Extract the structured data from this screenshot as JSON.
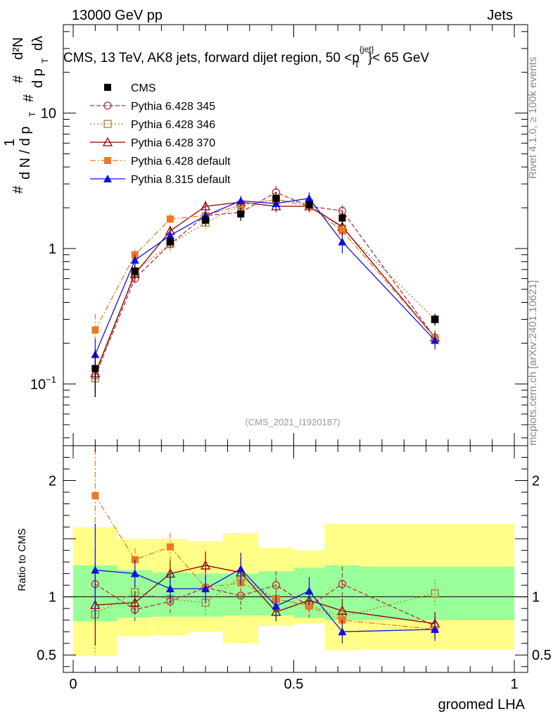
{
  "header": {
    "left": "13000 GeV pp",
    "right": "Jets"
  },
  "side_labels": {
    "rivet": "Rivet 4.1.0, ≥ 100k events",
    "mcplots": "mcplots.cern.ch [arXiv:2401.10621]"
  },
  "chart_data": {
    "type": "line",
    "title": "CMS, 13 TeV, AK8 jets, forward dijet region, 50 <p{jet}T< 65 GeV",
    "title_parts": {
      "main": "CMS, 13 TeV, AK8 jets, forward dijet region, 50 <p",
      "sup": "{jet}",
      "sub": "T",
      "tail": "}< 65 GeV"
    },
    "xlabel": "groomed LHA",
    "ylabel_parts": {
      "hash": "#",
      "one": "1",
      "dn": "d N / d p",
      "t": "T",
      "d2n": "d²N",
      "dpt": "d p",
      "dlambda": "dλ"
    },
    "ratio_ylabel": "Ratio to CMS",
    "watermark": "(CMS_2021_I1920187)",
    "xlim": [
      0,
      1
    ],
    "ylim": [
      0.035,
      45
    ],
    "yscale": "log",
    "ratio_ylim": [
      0.35,
      2.3
    ],
    "x_ticks": [
      {
        "value": 0,
        "label": "0"
      },
      {
        "value": 0.5,
        "label": "0.5"
      },
      {
        "value": 1,
        "label": "1"
      }
    ],
    "y_ticks": [
      {
        "value": 0.1,
        "base": "10",
        "exp": "−1"
      },
      {
        "value": 1,
        "base": "1",
        "exp": ""
      },
      {
        "value": 10,
        "base": "10",
        "exp": ""
      }
    ],
    "ratio_ticks": [
      {
        "value": 0.5,
        "label": "0.5"
      },
      {
        "value": 1,
        "label": "1"
      },
      {
        "value": 2,
        "label": "2"
      }
    ],
    "x_bins": [
      0,
      0.1,
      0.18,
      0.26,
      0.34,
      0.42,
      0.5,
      0.57,
      0.65,
      1.0
    ],
    "x_centers": [
      0.05,
      0.14,
      0.22,
      0.3,
      0.38,
      0.46,
      0.535,
      0.61,
      0.82
    ],
    "band_green": [
      [
        0.79,
        1.27
      ],
      [
        0.82,
        1.23
      ],
      [
        0.83,
        1.21
      ],
      [
        0.83,
        1.2
      ],
      [
        0.84,
        1.2
      ],
      [
        0.84,
        1.22
      ],
      [
        0.82,
        1.25
      ],
      [
        0.8,
        1.27
      ],
      [
        0.8,
        1.26
      ]
    ],
    "band_yellow": [
      [
        0.49,
        1.6
      ],
      [
        0.66,
        1.5
      ],
      [
        0.67,
        1.5
      ],
      [
        0.7,
        1.48
      ],
      [
        0.6,
        1.55
      ],
      [
        0.75,
        1.42
      ],
      [
        0.77,
        1.4
      ],
      [
        0.54,
        1.63
      ],
      [
        0.55,
        1.63
      ]
    ],
    "series": [
      {
        "name": "CMS",
        "color": "#000000",
        "marker": "square-filled",
        "dash": "none",
        "values": [
          0.13,
          0.68,
          1.12,
          1.62,
          1.8,
          2.35,
          2.1,
          1.68,
          0.3
        ],
        "errors": [
          0.05,
          0.08,
          0.1,
          0.15,
          0.2,
          0.25,
          0.2,
          0.2,
          0.03
        ],
        "ratio": [
          1.0,
          1.0,
          1.0,
          1.0,
          1.0,
          1.0,
          1.0,
          1.0,
          1.0
        ],
        "ratio_errors": [
          0,
          0,
          0,
          0,
          0,
          0,
          0,
          0,
          0
        ]
      },
      {
        "name": "Pythia 6.428 345",
        "color": "#b03040",
        "marker": "circle-open",
        "dash": "6,3",
        "values": [
          0.115,
          0.6,
          1.08,
          1.75,
          1.85,
          2.6,
          2.05,
          1.9,
          0.22
        ],
        "errors": [
          0.03,
          0.06,
          0.12,
          0.15,
          0.2,
          0.3,
          0.2,
          0.2,
          0.03
        ],
        "ratio": [
          1.11,
          0.89,
          0.96,
          1.08,
          1.01,
          1.1,
          0.92,
          1.11,
          0.75
        ],
        "ratio_errors": [
          0.3,
          0.1,
          0.1,
          0.1,
          0.12,
          0.12,
          0.1,
          0.15,
          0.1
        ]
      },
      {
        "name": "Pythia 6.428 346",
        "color": "#a08030",
        "marker": "square-open",
        "dash": "2,3",
        "values": [
          0.11,
          0.68,
          1.08,
          1.55,
          2.1,
          2.3,
          2.15,
          1.4,
          0.3
        ],
        "errors": [
          0.03,
          0.06,
          0.12,
          0.15,
          0.2,
          0.3,
          0.2,
          0.2,
          0.03
        ],
        "ratio": [
          0.85,
          1.04,
          0.98,
          0.95,
          1.17,
          0.98,
          0.93,
          0.83,
          1.03
        ],
        "ratio_errors": [
          0.35,
          0.1,
          0.1,
          0.12,
          0.12,
          0.12,
          0.1,
          0.12,
          0.12
        ]
      },
      {
        "name": "Pythia 6.428 370",
        "color": "#8b0000",
        "marker": "triangle-open",
        "dash": "none",
        "values": [
          0.12,
          0.65,
          1.35,
          2.05,
          2.2,
          2.05,
          2.05,
          1.45,
          0.22
        ],
        "errors": [
          0.04,
          0.06,
          0.12,
          0.2,
          0.2,
          0.2,
          0.2,
          0.2,
          0.03
        ],
        "ratio": [
          0.93,
          0.95,
          1.2,
          1.27,
          1.21,
          0.87,
          0.97,
          0.88,
          0.77
        ],
        "ratio_errors": [
          0.35,
          0.1,
          0.12,
          0.12,
          0.12,
          0.08,
          0.1,
          0.1,
          0.1
        ]
      },
      {
        "name": "Pythia 6.428 default",
        "color": "#f07820",
        "marker": "square-filled",
        "dash": "8,3,2,3",
        "values": [
          0.25,
          0.9,
          1.65,
          1.75,
          2.1,
          2.3,
          2.05,
          1.35,
          0.22
        ],
        "errors": [
          0.08,
          0.08,
          0.15,
          0.15,
          0.2,
          0.25,
          0.2,
          0.2,
          0.03
        ],
        "ratio": [
          1.87,
          1.32,
          1.43,
          1.08,
          1.12,
          0.98,
          0.92,
          0.8,
          0.72
        ],
        "ratio_errors": [
          0.4,
          0.1,
          0.12,
          0.12,
          0.12,
          0.12,
          0.1,
          0.1,
          0.08
        ]
      },
      {
        "name": "Pythia 8.315 default",
        "color": "#1010e0",
        "marker": "triangle-filled",
        "dash": "none",
        "values": [
          0.165,
          0.82,
          1.25,
          1.75,
          2.25,
          2.15,
          2.35,
          1.12,
          0.21
        ],
        "errors": [
          0.05,
          0.08,
          0.12,
          0.18,
          0.2,
          0.2,
          0.25,
          0.2,
          0.03
        ],
        "ratio": [
          1.23,
          1.2,
          1.07,
          1.07,
          1.24,
          0.92,
          1.05,
          0.7,
          0.72
        ],
        "ratio_errors": [
          0.4,
          0.12,
          0.12,
          0.12,
          0.14,
          0.1,
          0.12,
          0.1,
          0.1
        ]
      }
    ]
  }
}
